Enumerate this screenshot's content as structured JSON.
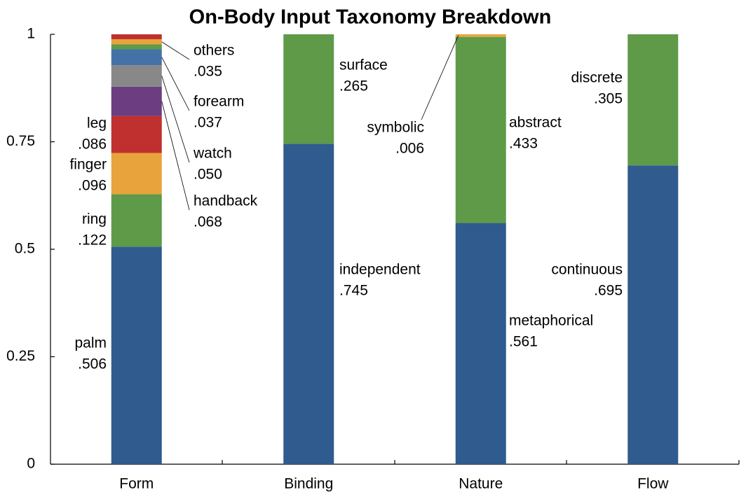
{
  "chart_data": {
    "type": "stacked_bar",
    "title": "On-Body Input Taxonomy Breakdown",
    "categories": [
      "Form",
      "Binding",
      "Nature",
      "Flow"
    ],
    "ylim": [
      0,
      1
    ],
    "yticks": [
      0,
      0.25,
      0.5,
      0.75,
      1
    ],
    "stacks": [
      {
        "segments": [
          {
            "name": "palm",
            "value": 0.506,
            "value_label": ".506",
            "color": "#2f5b8e"
          },
          {
            "name": "ring",
            "value": 0.122,
            "value_label": ".122",
            "color": "#5e9a48"
          },
          {
            "name": "finger",
            "value": 0.096,
            "value_label": ".096",
            "color": "#e8a33c"
          },
          {
            "name": "leg",
            "value": 0.086,
            "value_label": ".086",
            "color": "#c0302f"
          },
          {
            "name": "handback",
            "value": 0.068,
            "value_label": ".068",
            "color": "#6c3d80"
          },
          {
            "name": "watch",
            "value": 0.05,
            "value_label": ".050",
            "color": "#888888"
          },
          {
            "name": "forearm",
            "value": 0.037,
            "value_label": ".037",
            "color": "#4472a8"
          },
          {
            "name": "others",
            "value": 0.035,
            "value_label": ".035",
            "color": [
              "#5e9a48",
              "#e8a33c",
              "#c0302f"
            ]
          }
        ]
      },
      {
        "segments": [
          {
            "name": "independent",
            "value": 0.745,
            "value_label": ".745",
            "color": "#2f5b8e"
          },
          {
            "name": "surface",
            "value": 0.265,
            "value_label": ".265",
            "color": "#5e9a48"
          }
        ]
      },
      {
        "segments": [
          {
            "name": "metaphorical",
            "value": 0.561,
            "value_label": ".561",
            "color": "#2f5b8e"
          },
          {
            "name": "abstract",
            "value": 0.433,
            "value_label": ".433",
            "color": "#5e9a48"
          },
          {
            "name": "symbolic",
            "value": 0.006,
            "value_label": ".006",
            "color": "#e8a33c"
          }
        ]
      },
      {
        "segments": [
          {
            "name": "continuous",
            "value": 0.695,
            "value_label": ".695",
            "color": "#2f5b8e"
          },
          {
            "name": "discrete",
            "value": 0.305,
            "value_label": ".305",
            "color": "#5e9a48"
          }
        ]
      }
    ]
  }
}
